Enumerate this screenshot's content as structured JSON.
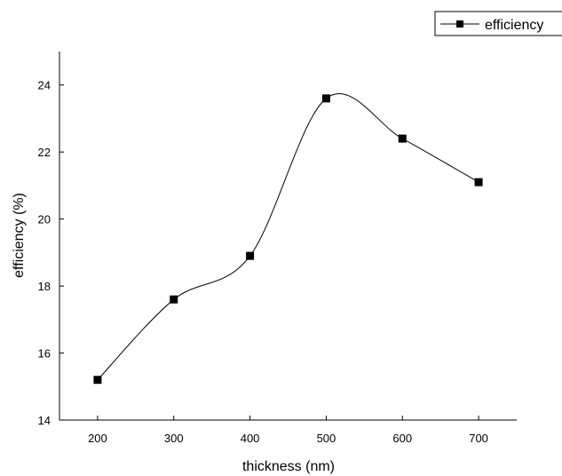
{
  "chart_data": {
    "type": "line",
    "xlabel": "thickness (nm)",
    "ylabel": "efficiency (%)",
    "xlim": [
      150,
      750
    ],
    "ylim": [
      14,
      25
    ],
    "xticks": [
      200,
      300,
      400,
      500,
      600,
      700
    ],
    "yticks": [
      14,
      16,
      18,
      20,
      22,
      24
    ],
    "x_tick_labels": [
      "200",
      "300",
      "400",
      "500",
      "600",
      "700"
    ],
    "y_tick_labels": [
      "14",
      "16",
      "18",
      "20",
      "22",
      "24"
    ],
    "grid": false,
    "legend_position": "top-right",
    "smooth": true,
    "series": [
      {
        "name": "efficiency",
        "marker": "square",
        "color": "#000000",
        "x": [
          200,
          300,
          400,
          500,
          600,
          700
        ],
        "y": [
          15.2,
          17.6,
          18.9,
          23.6,
          22.4,
          21.1
        ]
      }
    ]
  }
}
